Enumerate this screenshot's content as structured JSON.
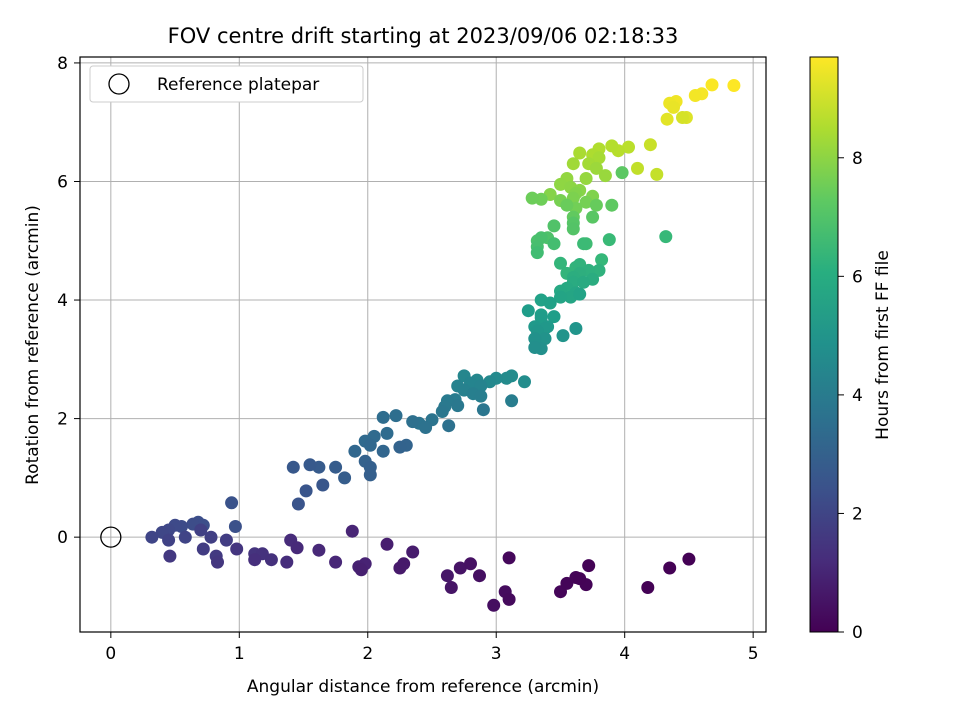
{
  "chart_data": {
    "type": "scatter",
    "title": "FOV centre drift starting at 2023/09/06 02:18:33",
    "xlabel": "Angular distance from reference (arcmin)",
    "ylabel": "Rotation from reference (arcmin)",
    "xlim": [
      -0.24,
      5.1
    ],
    "ylim": [
      -1.6,
      8.1
    ],
    "xticks": [
      0,
      1,
      2,
      3,
      4,
      5
    ],
    "yticks": [
      0,
      2,
      4,
      6,
      8
    ],
    "grid": true,
    "legend_position": "top-left",
    "legend": [
      {
        "label": "Reference platepar",
        "marker": "hollow-circle"
      }
    ],
    "reference_point": {
      "x": 0,
      "y": 0
    },
    "colorbar": {
      "label": "Hours from first FF file",
      "colormap": "viridis",
      "range": [
        0,
        9.7
      ],
      "ticks": [
        0,
        2,
        4,
        6,
        8
      ]
    },
    "points": [
      [
        4.85,
        7.62,
        9.7
      ],
      [
        4.68,
        7.63,
        9.65
      ],
      [
        4.6,
        7.48,
        9.6
      ],
      [
        4.55,
        7.45,
        9.55
      ],
      [
        4.4,
        7.35,
        9.5
      ],
      [
        4.35,
        7.32,
        9.45
      ],
      [
        4.38,
        7.25,
        9.4
      ],
      [
        4.33,
        7.05,
        9.3
      ],
      [
        4.48,
        7.08,
        9.2
      ],
      [
        4.45,
        7.08,
        9.1
      ],
      [
        4.2,
        6.62,
        8.9
      ],
      [
        4.25,
        6.12,
        8.85
      ],
      [
        4.1,
        6.22,
        8.8
      ],
      [
        4.03,
        6.58,
        8.7
      ],
      [
        3.95,
        6.52,
        8.65
      ],
      [
        3.9,
        6.6,
        8.6
      ],
      [
        3.8,
        6.55,
        8.55
      ],
      [
        3.75,
        6.45,
        8.5
      ],
      [
        3.65,
        6.48,
        8.45
      ],
      [
        3.8,
        6.4,
        8.4
      ],
      [
        3.72,
        6.3,
        8.35
      ],
      [
        3.6,
        6.3,
        8.3
      ],
      [
        3.78,
        6.22,
        8.25
      ],
      [
        3.85,
        6.1,
        8.2
      ],
      [
        3.7,
        6.05,
        8.15
      ],
      [
        3.55,
        6.05,
        8.1
      ],
      [
        3.5,
        5.95,
        8.05
      ],
      [
        3.58,
        5.9,
        8.0
      ],
      [
        3.65,
        5.85,
        7.95
      ],
      [
        3.42,
        5.78,
        7.9
      ],
      [
        3.62,
        5.8,
        7.85
      ],
      [
        3.75,
        5.75,
        7.8
      ],
      [
        3.6,
        5.72,
        7.75
      ],
      [
        3.5,
        5.68,
        7.7
      ],
      [
        3.7,
        5.65,
        7.65
      ],
      [
        3.62,
        5.55,
        7.6
      ],
      [
        3.35,
        5.7,
        7.55
      ],
      [
        3.28,
        5.72,
        7.5
      ],
      [
        3.55,
        5.6,
        7.45
      ],
      [
        3.78,
        5.6,
        7.4
      ],
      [
        3.6,
        5.4,
        7.3
      ],
      [
        3.9,
        5.6,
        7.25
      ],
      [
        3.98,
        6.15,
        7.2
      ],
      [
        3.75,
        5.4,
        7.15
      ],
      [
        3.6,
        5.3,
        7.1
      ],
      [
        3.6,
        5.2,
        7.05
      ],
      [
        3.45,
        5.25,
        7.0
      ],
      [
        3.4,
        5.05,
        6.95
      ],
      [
        3.32,
        5.0,
        6.9
      ],
      [
        3.35,
        5.05,
        6.85
      ],
      [
        3.32,
        4.9,
        6.8
      ],
      [
        3.45,
        4.95,
        6.75
      ],
      [
        3.32,
        4.8,
        6.7
      ],
      [
        3.7,
        4.95,
        6.65
      ],
      [
        3.68,
        4.95,
        6.6
      ],
      [
        3.88,
        5.02,
        6.55
      ],
      [
        4.32,
        5.07,
        6.5
      ],
      [
        3.82,
        4.68,
        6.45
      ],
      [
        3.5,
        4.62,
        6.4
      ],
      [
        3.55,
        4.45,
        6.35
      ],
      [
        3.62,
        4.55,
        6.3
      ],
      [
        3.65,
        4.6,
        6.25
      ],
      [
        3.8,
        4.5,
        6.2
      ],
      [
        3.72,
        4.5,
        6.15
      ],
      [
        3.65,
        4.45,
        6.1
      ],
      [
        3.6,
        4.38,
        6.05
      ],
      [
        3.75,
        4.35,
        6.0
      ],
      [
        3.6,
        4.3,
        5.95
      ],
      [
        3.68,
        4.3,
        5.9
      ],
      [
        3.55,
        4.2,
        5.85
      ],
      [
        3.5,
        4.15,
        5.8
      ],
      [
        3.62,
        4.12,
        5.75
      ],
      [
        3.58,
        4.05,
        5.7
      ],
      [
        3.5,
        4.05,
        5.65
      ],
      [
        3.65,
        4.1,
        5.6
      ],
      [
        3.35,
        4.0,
        5.55
      ],
      [
        3.42,
        3.95,
        5.5
      ],
      [
        3.35,
        3.75,
        5.45
      ],
      [
        3.45,
        3.72,
        5.4
      ],
      [
        3.25,
        3.82,
        5.35
      ],
      [
        3.35,
        3.7,
        5.3
      ],
      [
        3.4,
        3.55,
        5.25
      ],
      [
        3.3,
        3.55,
        5.2
      ],
      [
        3.38,
        3.52,
        5.15
      ],
      [
        3.32,
        3.48,
        5.1
      ],
      [
        3.62,
        3.52,
        5.05
      ],
      [
        3.52,
        3.4,
        5.0
      ],
      [
        3.38,
        3.35,
        4.95
      ],
      [
        3.3,
        3.35,
        4.9
      ],
      [
        3.35,
        3.18,
        4.85
      ],
      [
        3.3,
        3.2,
        4.8
      ],
      [
        3.22,
        2.62,
        4.75
      ],
      [
        3.12,
        2.72,
        4.7
      ],
      [
        3.08,
        2.68,
        4.65
      ],
      [
        3.0,
        2.68,
        4.6
      ],
      [
        2.95,
        2.62,
        4.55
      ],
      [
        2.85,
        2.65,
        4.5
      ],
      [
        2.75,
        2.72,
        4.45
      ],
      [
        2.8,
        2.6,
        4.4
      ],
      [
        2.88,
        2.55,
        4.35
      ],
      [
        2.7,
        2.55,
        4.3
      ],
      [
        2.75,
        2.48,
        4.25
      ],
      [
        2.82,
        2.42,
        4.2
      ],
      [
        2.88,
        2.38,
        4.15
      ],
      [
        3.12,
        2.3,
        4.1
      ],
      [
        2.68,
        2.32,
        4.05
      ],
      [
        2.62,
        2.3,
        4.0
      ],
      [
        2.6,
        2.2,
        3.95
      ],
      [
        2.7,
        2.22,
        3.9
      ],
      [
        2.58,
        2.12,
        3.85
      ],
      [
        2.9,
        2.15,
        3.8
      ],
      [
        2.5,
        1.98,
        3.75
      ],
      [
        2.4,
        1.92,
        3.7
      ],
      [
        2.45,
        1.85,
        3.65
      ],
      [
        2.63,
        1.88,
        3.6
      ],
      [
        2.35,
        1.95,
        3.55
      ],
      [
        2.22,
        2.05,
        3.5
      ],
      [
        2.12,
        2.02,
        3.45
      ],
      [
        2.15,
        1.75,
        3.4
      ],
      [
        2.05,
        1.7,
        3.35
      ],
      [
        1.98,
        1.62,
        3.3
      ],
      [
        2.02,
        1.55,
        3.25
      ],
      [
        1.9,
        1.45,
        3.2
      ],
      [
        2.12,
        1.45,
        3.15
      ],
      [
        2.3,
        1.55,
        3.1
      ],
      [
        2.25,
        1.52,
        3.05
      ],
      [
        1.98,
        1.28,
        3.0
      ],
      [
        2.02,
        1.18,
        2.95
      ],
      [
        2.02,
        1.05,
        2.9
      ],
      [
        1.82,
        1.0,
        2.85
      ],
      [
        1.75,
        1.18,
        2.8
      ],
      [
        1.62,
        1.18,
        2.75
      ],
      [
        1.55,
        1.22,
        2.7
      ],
      [
        1.42,
        1.18,
        2.65
      ],
      [
        1.65,
        0.88,
        2.6
      ],
      [
        1.52,
        0.78,
        2.55
      ],
      [
        1.46,
        0.56,
        2.5
      ],
      [
        0.94,
        0.58,
        2.45
      ],
      [
        0.97,
        0.18,
        2.4
      ],
      [
        0.72,
        0.2,
        2.35
      ],
      [
        0.68,
        0.25,
        2.3
      ],
      [
        0.64,
        0.22,
        2.25
      ],
      [
        0.55,
        0.18,
        2.2
      ],
      [
        0.5,
        0.2,
        2.15
      ],
      [
        0.45,
        0.12,
        2.1
      ],
      [
        0.4,
        0.08,
        2.05
      ],
      [
        0.32,
        0.0,
        2.0
      ],
      [
        0.58,
        0.0,
        1.95
      ],
      [
        0.45,
        -0.05,
        1.9
      ],
      [
        0.7,
        0.12,
        1.85
      ],
      [
        0.78,
        0.0,
        1.8
      ],
      [
        0.9,
        -0.05,
        1.75
      ],
      [
        0.72,
        -0.2,
        1.7
      ],
      [
        0.82,
        -0.32,
        1.65
      ],
      [
        0.46,
        -0.32,
        1.6
      ],
      [
        0.83,
        -0.42,
        1.55
      ],
      [
        0.98,
        -0.2,
        1.5
      ],
      [
        1.12,
        -0.28,
        1.45
      ],
      [
        1.18,
        -0.28,
        1.4
      ],
      [
        1.25,
        -0.38,
        1.35
      ],
      [
        1.12,
        -0.38,
        1.3
      ],
      [
        1.37,
        -0.42,
        1.25
      ],
      [
        1.4,
        -0.05,
        1.2
      ],
      [
        1.45,
        -0.18,
        1.15
      ],
      [
        1.62,
        -0.22,
        1.1
      ],
      [
        1.75,
        -0.42,
        1.05
      ],
      [
        1.88,
        0.1,
        1.0
      ],
      [
        1.98,
        -0.45,
        0.95
      ],
      [
        1.93,
        -0.5,
        0.9
      ],
      [
        1.95,
        -0.55,
        0.85
      ],
      [
        2.15,
        -0.12,
        0.8
      ],
      [
        2.35,
        -0.25,
        0.75
      ],
      [
        2.25,
        -0.52,
        0.7
      ],
      [
        2.28,
        -0.45,
        0.65
      ],
      [
        2.62,
        -0.65,
        0.6
      ],
      [
        2.65,
        -0.85,
        0.55
      ],
      [
        2.72,
        -0.52,
        0.5
      ],
      [
        2.8,
        -0.45,
        0.45
      ],
      [
        2.87,
        -0.65,
        0.4
      ],
      [
        2.98,
        -1.15,
        0.35
      ],
      [
        3.07,
        -0.92,
        0.3
      ],
      [
        3.1,
        -1.05,
        0.25
      ],
      [
        3.1,
        -0.35,
        0.2
      ],
      [
        3.5,
        -0.92,
        0.15
      ],
      [
        3.55,
        -0.78,
        0.12
      ],
      [
        3.62,
        -0.68,
        0.1
      ],
      [
        3.7,
        -0.8,
        0.08
      ],
      [
        3.65,
        -0.7,
        0.06
      ],
      [
        3.72,
        -0.48,
        0.05
      ],
      [
        4.18,
        -0.85,
        0.04
      ],
      [
        4.35,
        -0.52,
        0.03
      ],
      [
        4.5,
        -0.37,
        0.02
      ]
    ]
  }
}
